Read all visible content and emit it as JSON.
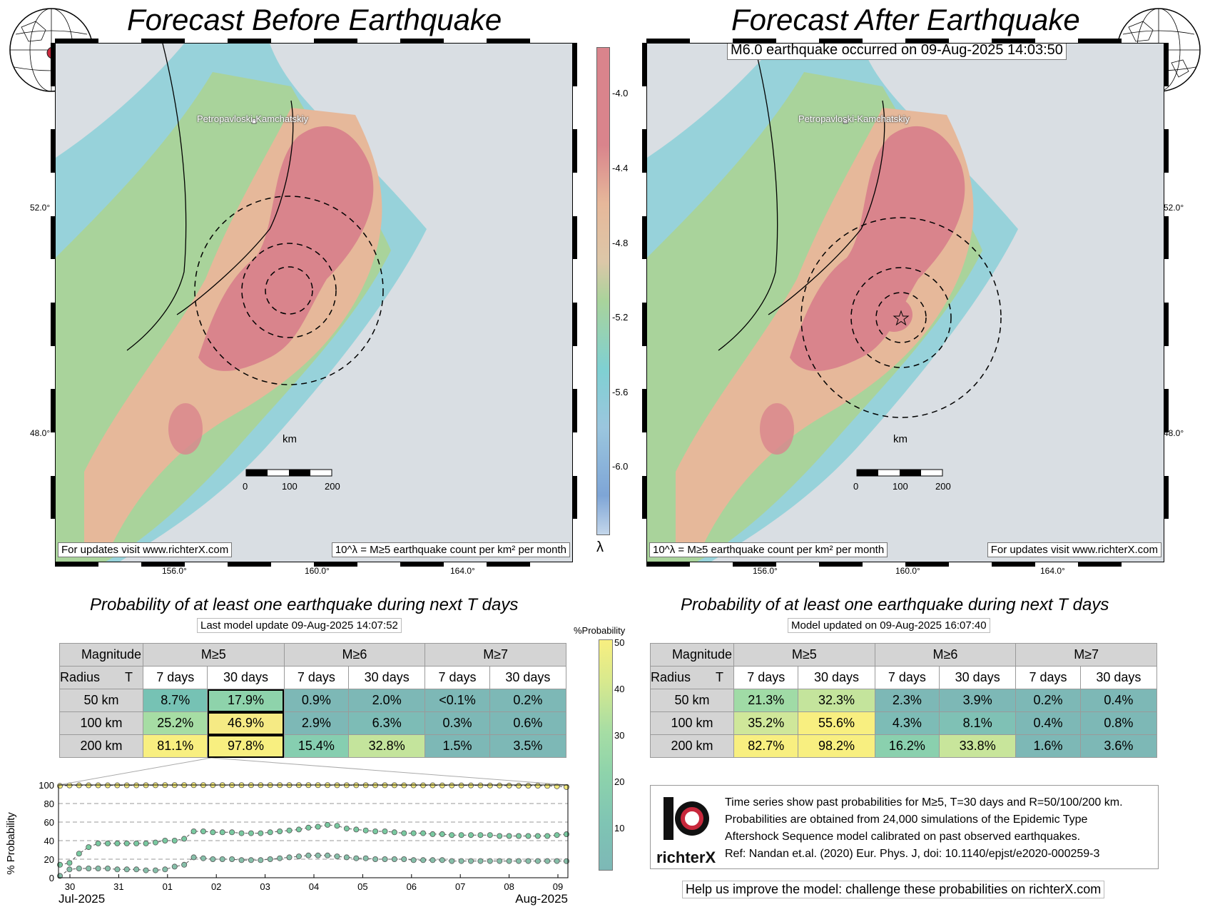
{
  "left": {
    "title": "Forecast Before Earthquake",
    "city": "Petropavloski-Kamchatskiy",
    "km_label": "km",
    "scale_ticks": [
      "0",
      "100",
      "200"
    ],
    "updates_label": "For updates visit www.richterX.com",
    "unit_label": "10^λ = M≥5 earthquake count per km² per month",
    "lat_labels": [
      "52.0°",
      "48.0°"
    ],
    "lon_labels": [
      "156.0°",
      "160.0°",
      "164.0°"
    ]
  },
  "right": {
    "title": "Forecast After Earthquake",
    "event_label": "M6.0 earthquake occurred on 09-Aug-2025 14:03:50",
    "city": "Petropavloski-Kamchatskiy",
    "km_label": "km",
    "scale_ticks": [
      "0",
      "100",
      "200"
    ],
    "updates_label": "For updates visit www.richterX.com",
    "unit_label": "10^λ = M≥5 earthquake count per km² per month",
    "lat_labels": [
      "52.0°",
      "48.0°"
    ],
    "lon_labels": [
      "156.0°",
      "160.0°",
      "164.0°"
    ]
  },
  "lambda_bar": {
    "symbol": "λ",
    "ticks": [
      "-4.0",
      "-4.4",
      "-4.8",
      "-5.2",
      "-5.6",
      "-6.0"
    ],
    "colors": [
      "#d9848c",
      "#e6b89a",
      "#dcc7a8",
      "#a9d39b",
      "#7fd0d2",
      "#9bc6de",
      "#7ea5d6"
    ]
  },
  "prob_left": {
    "subtitle": "Probability of at least one earthquake during next T days",
    "update": "Last model update 09-Aug-2025 14:07:52",
    "corner_mag": "Magnitude",
    "corner_rad": "Radius",
    "corner_t": "T",
    "mags": [
      "M≥5",
      "M≥6",
      "M≥7"
    ],
    "periods": [
      "7 days",
      "30 days",
      "7 days",
      "30 days",
      "7 days",
      "30 days"
    ],
    "rows": [
      {
        "radius": "50 km",
        "cells": [
          "8.7%",
          "17.9%",
          "0.9%",
          "2.0%",
          "<0.1%",
          "0.2%"
        ],
        "colors": [
          "#76c2b4",
          "#8ed3ab",
          "#7db8b6",
          "#7db8b6",
          "#7db8b6",
          "#7db8b6"
        ]
      },
      {
        "radius": "100 km",
        "cells": [
          "25.2%",
          "46.9%",
          "2.9%",
          "6.3%",
          "0.3%",
          "0.6%"
        ],
        "colors": [
          "#a6dda4",
          "#f5ea84",
          "#7db8b6",
          "#7dbcb6",
          "#7db8b6",
          "#7db8b6"
        ]
      },
      {
        "radius": "200 km",
        "cells": [
          "81.1%",
          "97.8%",
          "15.4%",
          "32.8%",
          "1.5%",
          "3.5%"
        ],
        "colors": [
          "#f8ef80",
          "#f8ef80",
          "#86ceb0",
          "#c4e49c",
          "#7db8b6",
          "#7db8b6"
        ]
      }
    ]
  },
  "prob_right": {
    "subtitle": "Probability of at least one earthquake during next T days",
    "update": "Model updated on 09-Aug-2025 16:07:40",
    "corner_mag": "Magnitude",
    "corner_rad": "Radius",
    "corner_t": "T",
    "mags": [
      "M≥5",
      "M≥6",
      "M≥7"
    ],
    "periods": [
      "7 days",
      "30 days",
      "7 days",
      "30 days",
      "7 days",
      "30 days"
    ],
    "rows": [
      {
        "radius": "50 km",
        "cells": [
          "21.3%",
          "32.3%",
          "2.3%",
          "3.9%",
          "0.2%",
          "0.4%"
        ],
        "colors": [
          "#a0dba6",
          "#c4e49c",
          "#7db8b6",
          "#7db8b6",
          "#7db8b6",
          "#7db8b6"
        ]
      },
      {
        "radius": "100 km",
        "cells": [
          "35.2%",
          "55.6%",
          "4.3%",
          "8.1%",
          "0.4%",
          "0.8%"
        ],
        "colors": [
          "#cfe79a",
          "#f8ef80",
          "#7dbcb6",
          "#7fc1b5",
          "#7db8b6",
          "#7db8b6"
        ]
      },
      {
        "radius": "200 km",
        "cells": [
          "82.7%",
          "98.2%",
          "16.2%",
          "33.8%",
          "1.6%",
          "3.6%"
        ],
        "colors": [
          "#f8ef80",
          "#f8ef80",
          "#8ad0ae",
          "#c8e59b",
          "#7db8b6",
          "#7db8b6"
        ]
      }
    ]
  },
  "prob_colorbar": {
    "label": "%Probability",
    "ticks": [
      "50",
      "40",
      "30",
      "20",
      "10"
    ]
  },
  "chart_data": {
    "type": "line",
    "ylabel": "% Probability",
    "ylim": [
      0,
      100
    ],
    "yticks": [
      "100",
      "80",
      "60",
      "40",
      "20",
      "0"
    ],
    "x_tick_labels": [
      "30",
      "31",
      "01",
      "02",
      "03",
      "04",
      "05",
      "06",
      "07",
      "08",
      "09"
    ],
    "month_labels": [
      "Jul-2025",
      "Aug-2025"
    ],
    "series": [
      {
        "color": "#f3ea7c",
        "values": [
          99,
          99.5,
          99.6,
          99.6,
          99.6,
          99.6,
          99.6,
          99.6,
          99.6,
          99.7,
          99.7,
          99.8,
          99.8,
          99.8,
          99.8,
          99.8,
          99.8,
          99.8,
          99.8,
          99.8,
          99.8,
          99.8,
          99.8,
          99.8,
          99.8,
          99.8,
          99.8,
          99.8,
          99.8,
          99.7,
          99.7,
          99.7,
          99.7,
          99.7,
          99.7,
          99.7,
          99.6,
          99.6,
          99.6,
          99.6,
          99.5,
          99.5,
          99.5,
          99.5,
          99.5,
          99.4,
          99.4,
          99.3,
          99.2,
          99.2,
          99.2,
          99.0,
          98.6,
          97.8
        ]
      },
      {
        "color": "#79c9a0",
        "values": [
          14,
          16,
          26,
          33,
          37,
          37,
          37,
          37,
          37,
          37,
          38,
          40,
          40,
          42,
          50,
          50,
          49,
          49,
          49,
          48,
          48,
          48,
          49,
          50,
          51,
          52,
          54,
          55,
          57,
          56,
          53,
          52,
          51,
          50,
          50,
          49,
          48,
          48,
          48,
          47,
          47,
          46,
          46,
          46,
          46,
          46,
          45,
          45,
          45,
          45,
          45,
          45,
          46,
          46.9
        ]
      },
      {
        "color": "#86bfa9",
        "values": [
          2,
          9,
          10,
          10,
          10,
          10,
          9,
          9,
          9,
          8,
          8,
          9,
          12,
          14,
          22,
          21,
          20,
          20,
          20,
          19,
          19,
          19,
          20,
          21,
          22,
          23,
          24,
          24,
          24,
          23,
          22,
          21,
          21,
          20,
          20,
          20,
          20,
          19,
          19,
          19,
          19,
          18,
          18,
          18,
          18,
          18,
          18,
          18,
          18,
          18,
          18,
          18,
          18,
          17.9
        ]
      }
    ]
  },
  "info": {
    "logo_text": "richterX",
    "lines": [
      "Time series show past probabilities for M≥5, T=30 days and R=50/100/200 km.",
      "Probabilities are obtained from 24,000 simulations of the Epidemic Type",
      "Aftershock Sequence model calibrated on past observed earthquakes.",
      "Ref: Nandan et.al. (2020) Eur. Phys. J, doi: 10.1140/epjst/e2020-000259-3"
    ],
    "help": "Help us improve the model: challenge these probabilities on richterX.com"
  }
}
